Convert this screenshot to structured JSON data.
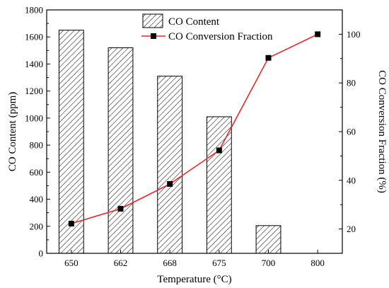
{
  "chart_data": {
    "type": "bar+line",
    "categories": [
      "650",
      "662",
      "668",
      "675",
      "700",
      "800"
    ],
    "xlabel": "Temperature (°C)",
    "bars": {
      "name": "CO Content",
      "axis": "left",
      "values": [
        1650,
        1520,
        1310,
        1010,
        205,
        0
      ]
    },
    "line": {
      "name": "CO Conversion Fraction",
      "axis": "right",
      "color": "#e8272a",
      "values": [
        22.2,
        28.3,
        38.5,
        52.3,
        90.3,
        100.0
      ]
    },
    "y_left": {
      "label": "CO Content (ppm)",
      "lim": [
        0,
        1800
      ],
      "ticks": [
        "0",
        "200",
        "400",
        "600",
        "800",
        "1000",
        "1200",
        "1400",
        "1600",
        "1800"
      ]
    },
    "y_right": {
      "label": "CO Conversion Fraction (%)",
      "lim": [
        10,
        110
      ],
      "ticks": [
        "20",
        "40",
        "60",
        "80",
        "100"
      ]
    },
    "legend_position": "top-center",
    "grid": false
  }
}
